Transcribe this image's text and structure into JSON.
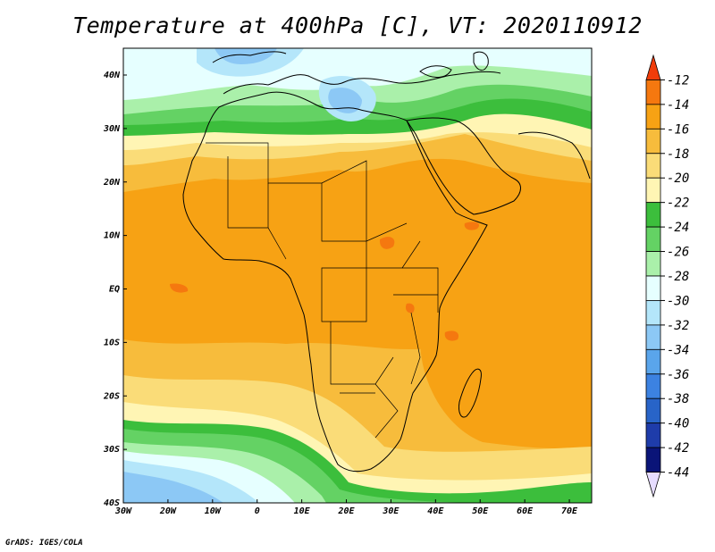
{
  "title": "Temperature at 400hPa [C], VT: 2020110912",
  "credit": "GrADS: IGES/COLA",
  "map": {
    "lon_range": [
      -30,
      75
    ],
    "lat_range": [
      -40,
      45
    ],
    "lat_ticks": [
      "40N",
      "30N",
      "20N",
      "10N",
      "EQ",
      "10S",
      "20S",
      "30S",
      "40S"
    ],
    "lon_ticks": [
      "30W",
      "20W",
      "10W",
      "0",
      "10E",
      "20E",
      "30E",
      "40E",
      "50E",
      "60E",
      "70E"
    ]
  },
  "colorbar": {
    "levels": [
      "-12",
      "-14",
      "-16",
      "-18",
      "-20",
      "-22",
      "-24",
      "-26",
      "-28",
      "-30",
      "-32",
      "-34",
      "-36",
      "-38",
      "-40",
      "-42",
      "-44"
    ],
    "colors": [
      "#f03c0a",
      "#f5780f",
      "#f7a214",
      "#f7bc3c",
      "#fadc78",
      "#fff5b4",
      "#3cbe3c",
      "#64d264",
      "#aaf0aa",
      "#e6ffff",
      "#b4e6fa",
      "#8cc8f5",
      "#5aa5eb",
      "#3c82e1",
      "#2864c8",
      "#1e3caa",
      "#0a1478",
      "#e6dcff"
    ]
  }
}
